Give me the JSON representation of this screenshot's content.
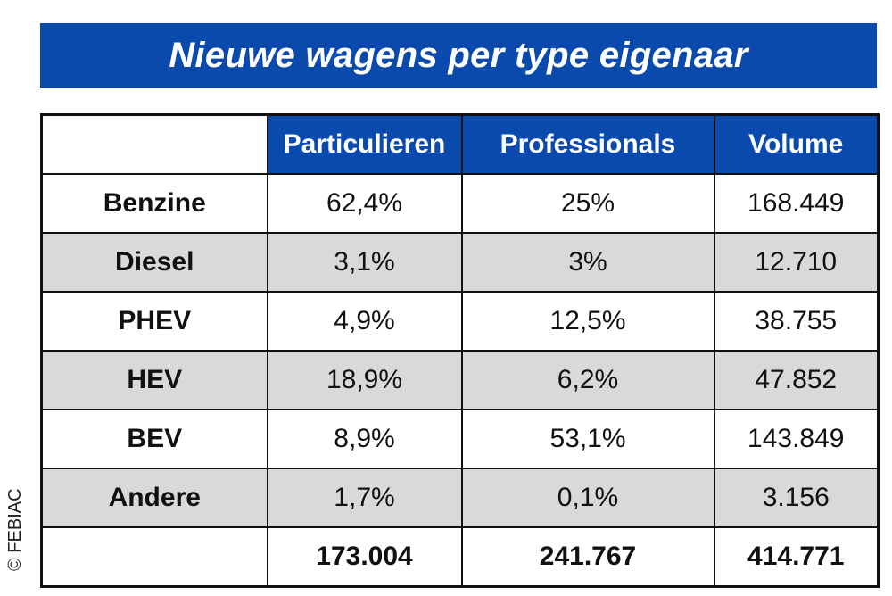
{
  "title": "Nieuwe wagens per type eigenaar",
  "credit": "© FEBIAC",
  "colors": {
    "header_blue": "#0a4aad",
    "shaded_row": "#d9d9d9",
    "border": "#111111"
  },
  "table": {
    "headers": [
      "",
      "Particulieren",
      "Professionals",
      "Volume"
    ],
    "rows": [
      {
        "label": "Benzine",
        "particulieren": "62,4%",
        "professionals": "25%",
        "volume": "168.449"
      },
      {
        "label": "Diesel",
        "particulieren": "3,1%",
        "professionals": "3%",
        "volume": "12.710"
      },
      {
        "label": "PHEV",
        "particulieren": "4,9%",
        "professionals": "12,5%",
        "volume": "38.755"
      },
      {
        "label": "HEV",
        "particulieren": "18,9%",
        "professionals": "6,2%",
        "volume": "47.852"
      },
      {
        "label": "BEV",
        "particulieren": "8,9%",
        "professionals": "53,1%",
        "volume": "143.849"
      },
      {
        "label": "Andere",
        "particulieren": "1,7%",
        "professionals": "0,1%",
        "volume": "3.156"
      }
    ],
    "totals": {
      "label": "",
      "particulieren": "173.004",
      "professionals": "241.767",
      "volume": "414.771"
    }
  }
}
